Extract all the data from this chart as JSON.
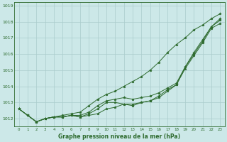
{
  "x": [
    0,
    1,
    2,
    3,
    4,
    5,
    6,
    7,
    8,
    9,
    10,
    11,
    12,
    13,
    14,
    15,
    16,
    17,
    18,
    19,
    20,
    21,
    22,
    23
  ],
  "line1": [
    1012.6,
    1012.2,
    1011.8,
    1012.0,
    1012.1,
    1012.2,
    1012.3,
    1012.4,
    1012.8,
    1013.2,
    1013.5,
    1013.7,
    1014.0,
    1014.3,
    1014.6,
    1015.0,
    1015.5,
    1016.1,
    1016.6,
    1017.0,
    1017.5,
    1017.8,
    1018.2,
    1018.5
  ],
  "line2": [
    1012.6,
    1012.2,
    1011.8,
    1012.0,
    1012.1,
    1012.1,
    1012.2,
    1012.2,
    1012.4,
    1012.8,
    1013.1,
    1013.2,
    1013.3,
    1013.2,
    1013.3,
    1013.4,
    1013.6,
    1013.9,
    1014.2,
    1015.2,
    1016.1,
    1016.9,
    1017.7,
    1018.2
  ],
  "line3": [
    1012.6,
    1012.2,
    1011.8,
    1012.0,
    1012.1,
    1012.1,
    1012.2,
    1012.1,
    1012.3,
    1012.6,
    1013.0,
    1013.0,
    1012.9,
    1012.9,
    1013.0,
    1013.1,
    1013.4,
    1013.8,
    1014.1,
    1015.2,
    1016.0,
    1016.8,
    1017.7,
    1018.1
  ],
  "line4": [
    1012.6,
    1012.2,
    1011.8,
    1012.0,
    1012.1,
    1012.1,
    1012.2,
    1012.1,
    1012.2,
    1012.3,
    1012.6,
    1012.7,
    1012.9,
    1012.8,
    1013.0,
    1013.1,
    1013.3,
    1013.7,
    1014.1,
    1015.1,
    1015.9,
    1016.7,
    1017.6,
    1017.9
  ],
  "line_color": "#2d6a2d",
  "bg_color": "#cce8e8",
  "grid_color": "#aacccc",
  "xlabel": "Graphe pression niveau de la mer (hPa)",
  "xlabel_color": "#2d6a2d",
  "ylim_min": 1011.5,
  "ylim_max": 1019.2,
  "ytick_min": 1012,
  "ytick_max": 1019,
  "fig_width": 3.2,
  "fig_height": 2.0,
  "dpi": 100
}
